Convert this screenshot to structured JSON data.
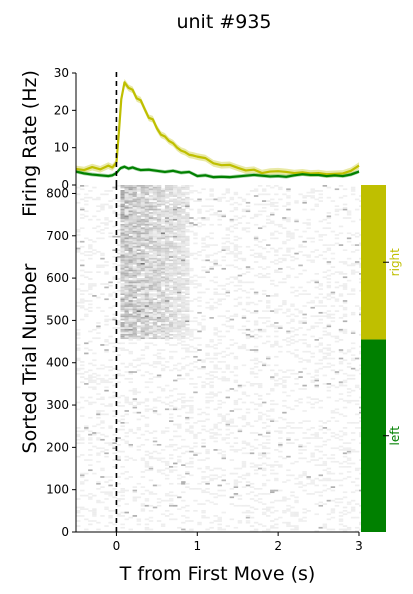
{
  "title": "unit #935",
  "chart_data": [
    {
      "type": "line",
      "panel": "psth",
      "ylabel": "Firing Rate (Hz)",
      "xlabel": "",
      "xlim": [
        -0.5,
        3.0
      ],
      "ylim": [
        0,
        30
      ],
      "yticks": [
        0,
        10,
        20,
        30
      ],
      "ytick_labels": [
        "0",
        "10",
        "20",
        "30"
      ],
      "event_line_x": 0,
      "grid": false,
      "series": [
        {
          "name": "right",
          "color": "#bfbf00",
          "x": [
            -0.5,
            -0.4,
            -0.3,
            -0.2,
            -0.1,
            -0.05,
            0.0,
            0.03,
            0.06,
            0.1,
            0.15,
            0.2,
            0.25,
            0.3,
            0.35,
            0.4,
            0.45,
            0.5,
            0.55,
            0.6,
            0.65,
            0.7,
            0.75,
            0.8,
            0.85,
            0.9,
            0.95,
            1.0,
            1.1,
            1.2,
            1.3,
            1.4,
            1.5,
            1.6,
            1.7,
            1.8,
            1.9,
            2.0,
            2.1,
            2.2,
            2.3,
            2.4,
            2.5,
            2.6,
            2.7,
            2.8,
            2.9,
            3.0
          ],
          "y": [
            4.3,
            4.0,
            4.8,
            4.2,
            5.2,
            4.7,
            6.0,
            14,
            23,
            27.5,
            26,
            25.5,
            23.2,
            22.7,
            20.3,
            18.0,
            17.6,
            15.2,
            13.5,
            13.0,
            11.8,
            11.2,
            10.0,
            9.2,
            8.8,
            8.1,
            7.9,
            7.6,
            7.2,
            5.8,
            5.3,
            5.4,
            4.6,
            3.9,
            4.1,
            3.2,
            3.6,
            3.7,
            3.5,
            3.2,
            3.4,
            3.1,
            3.2,
            2.9,
            3.0,
            3.1,
            3.8,
            5.2
          ],
          "band": 0.9
        },
        {
          "name": "left",
          "color": "#008000",
          "x": [
            -0.5,
            -0.4,
            -0.3,
            -0.2,
            -0.1,
            -0.05,
            0.0,
            0.05,
            0.1,
            0.15,
            0.2,
            0.25,
            0.3,
            0.4,
            0.5,
            0.6,
            0.7,
            0.8,
            0.9,
            1.0,
            1.1,
            1.2,
            1.3,
            1.4,
            1.5,
            1.6,
            1.7,
            1.8,
            1.9,
            2.0,
            2.1,
            2.2,
            2.3,
            2.4,
            2.5,
            2.6,
            2.7,
            2.8,
            2.9,
            3.0
          ],
          "y": [
            3.6,
            3.1,
            2.8,
            2.6,
            2.4,
            2.6,
            3.2,
            4.5,
            4.9,
            4.4,
            4.7,
            4.3,
            4.0,
            4.1,
            3.8,
            3.5,
            3.8,
            3.3,
            3.5,
            2.4,
            2.6,
            2.1,
            2.2,
            2.1,
            2.3,
            2.5,
            2.7,
            2.5,
            2.3,
            2.4,
            2.2,
            2.6,
            2.9,
            2.7,
            2.7,
            2.4,
            2.6,
            2.4,
            2.8,
            3.6
          ],
          "band": 0.5
        }
      ]
    },
    {
      "type": "heatmap",
      "panel": "raster",
      "xlabel": "T from First Move (s)",
      "ylabel": "Sorted Trial Number",
      "xlim": [
        -0.5,
        3.0
      ],
      "ylim": [
        0,
        820
      ],
      "xticks": [
        0,
        1,
        2,
        3
      ],
      "xtick_labels": [
        "0",
        "1",
        "2",
        "3"
      ],
      "yticks": [
        0,
        100,
        200,
        300,
        400,
        500,
        600,
        700,
        800
      ],
      "ytick_labels": [
        "0",
        "100",
        "200",
        "300",
        "400",
        "500",
        "600",
        "700",
        "800"
      ],
      "event_line_x": 0,
      "colormap": "grayscale",
      "n_trials": 820,
      "groups": [
        {
          "name": "left",
          "trial_start": 0,
          "trial_end": 455,
          "color": "#008000"
        },
        {
          "name": "right",
          "trial_start": 455,
          "trial_end": 820,
          "color": "#bfbf00"
        }
      ]
    }
  ]
}
